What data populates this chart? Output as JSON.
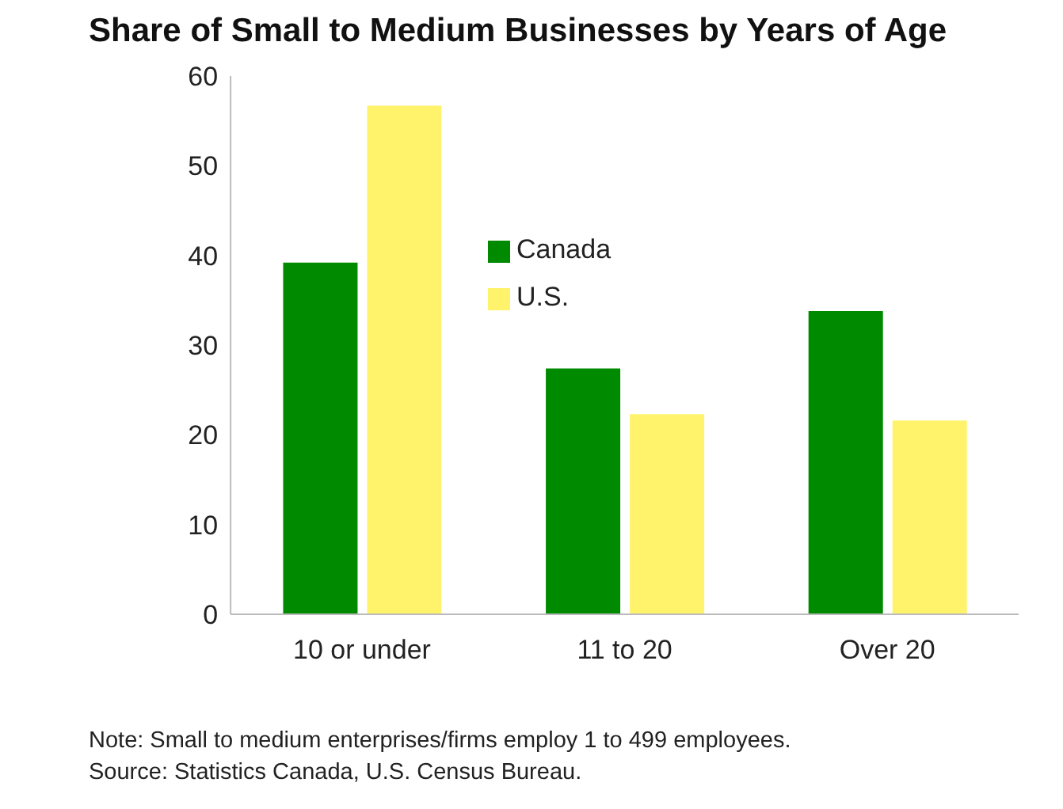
{
  "chart_data": {
    "type": "bar",
    "title": "Share of Small to Medium Businesses by Years of Age",
    "categories": [
      "10 or under",
      "11 to 20",
      "Over 20"
    ],
    "series": [
      {
        "name": "Canada",
        "color": "#008a00",
        "values": [
          39.2,
          27.4,
          33.8
        ]
      },
      {
        "name": "U.S.",
        "color": "#fff36b",
        "values": [
          56.7,
          22.3,
          21.6
        ]
      }
    ],
    "ylim": [
      0,
      60
    ],
    "yticks": [
      0,
      10,
      20,
      30,
      40,
      50,
      60
    ],
    "grid": false,
    "legend": "top",
    "annotations": [
      "Note: Small to medium enterprises/firms employ 1 to 499 employees.",
      "Source: Statistics Canada, U.S. Census Bureau."
    ]
  }
}
